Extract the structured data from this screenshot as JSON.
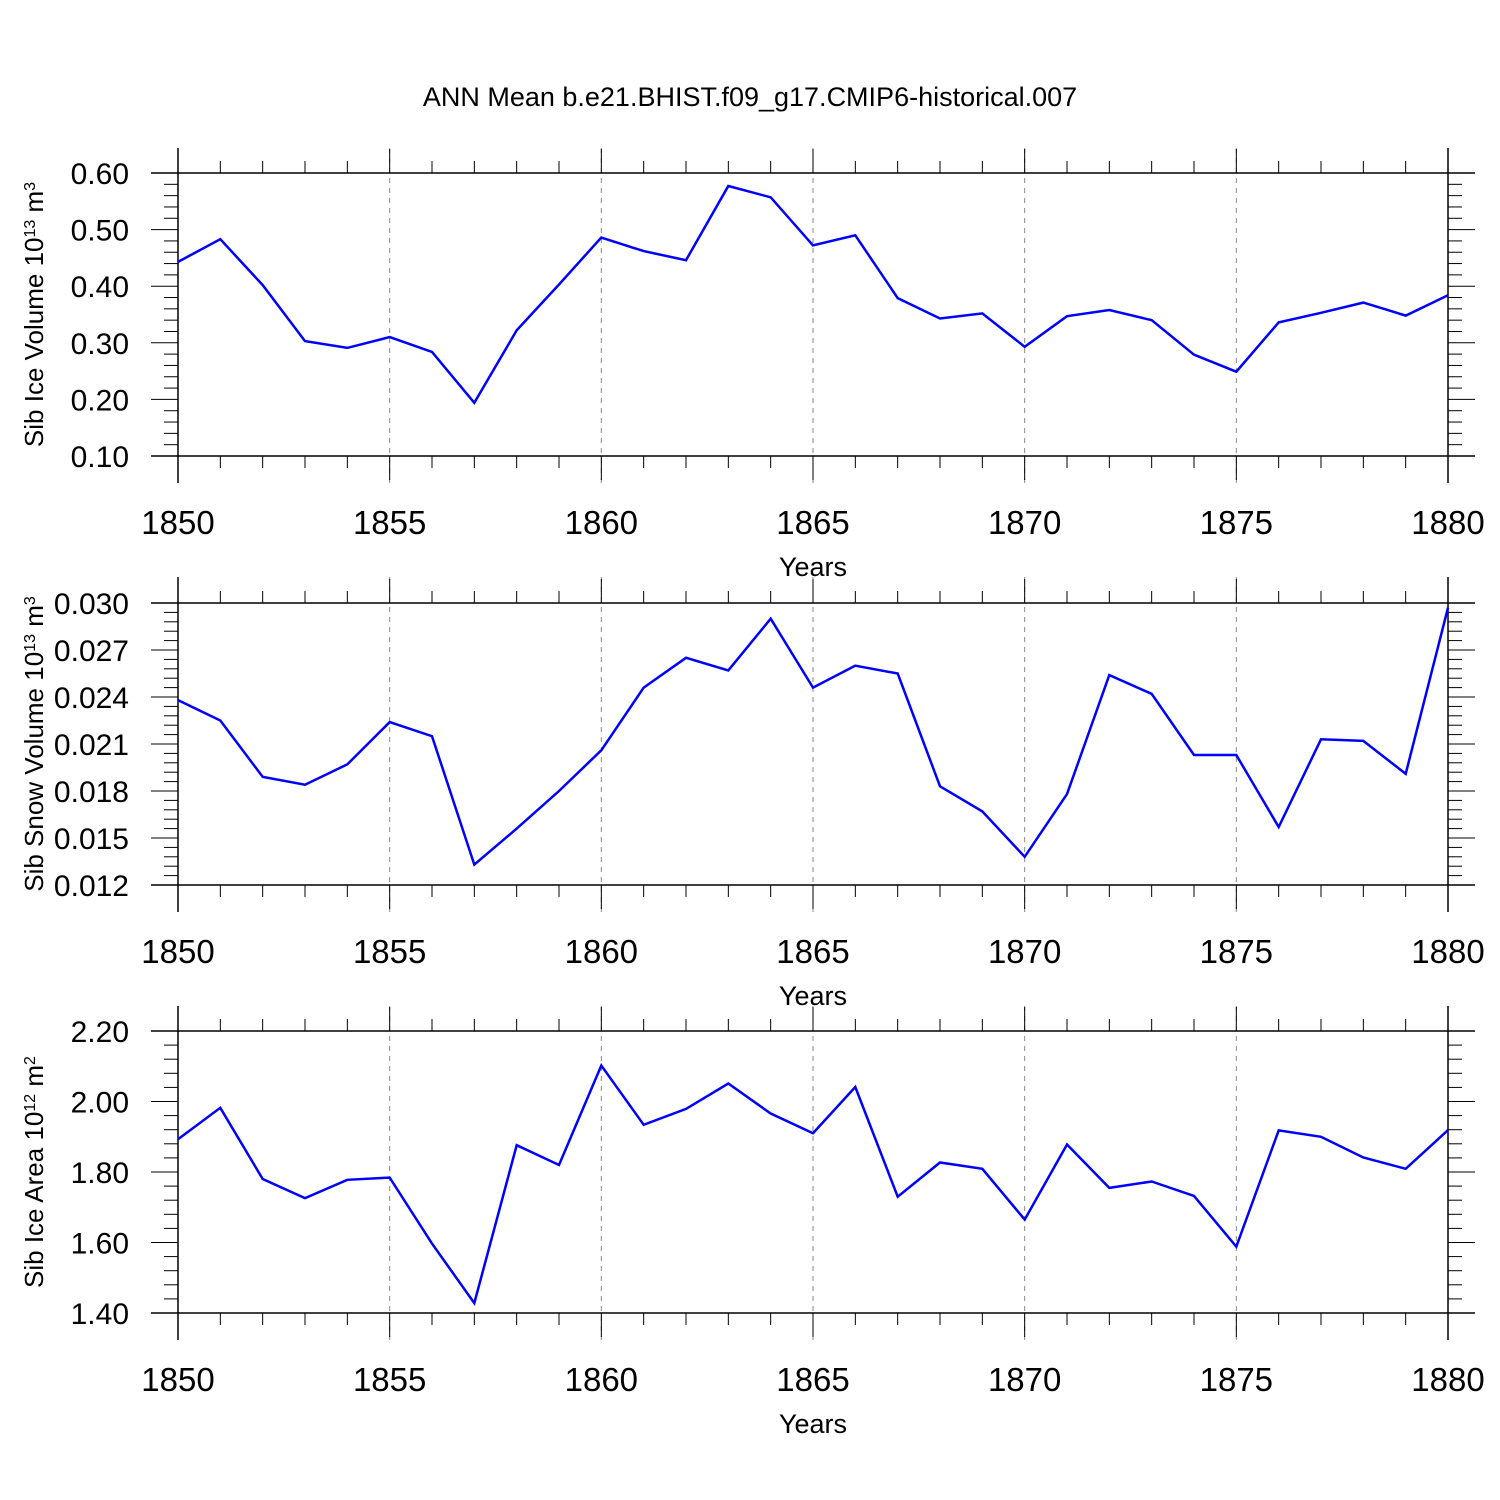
{
  "title": "ANN Mean b.e21.BHIST.f09_g17.CMIP6-historical.007",
  "colors": {
    "line": "#0000ff",
    "axis": "#000000",
    "grid": "#888888"
  },
  "chart_data": [
    {
      "type": "line",
      "ylabel": "Sib Ice Volume 10",
      "ylabel_exp": "13",
      "ylabel_unit": "m",
      "ylabel_unit_exp": "3",
      "xlabel": "Years",
      "xlim": [
        1850,
        1880
      ],
      "ylim": [
        0.1,
        0.6
      ],
      "y_ticks": [
        "0.10",
        "0.20",
        "0.30",
        "0.40",
        "0.50",
        "0.60"
      ],
      "x_ticks": [
        "1850",
        "1855",
        "1860",
        "1865",
        "1870",
        "1875",
        "1880"
      ],
      "grid_x": true,
      "x": [
        1850,
        1851,
        1852,
        1853,
        1854,
        1855,
        1856,
        1857,
        1858,
        1859,
        1860,
        1861,
        1862,
        1863,
        1864,
        1865,
        1866,
        1867,
        1868,
        1869,
        1870,
        1871,
        1872,
        1873,
        1874,
        1875,
        1876,
        1877,
        1878,
        1879,
        1880
      ],
      "y": [
        0.443,
        0.483,
        0.402,
        0.303,
        0.291,
        0.31,
        0.284,
        0.194,
        0.322,
        0.403,
        0.486,
        0.462,
        0.446,
        0.577,
        0.557,
        0.472,
        0.49,
        0.379,
        0.343,
        0.352,
        0.293,
        0.347,
        0.358,
        0.34,
        0.279,
        0.249,
        0.336,
        0.353,
        0.371,
        0.348,
        0.384
      ]
    },
    {
      "type": "line",
      "ylabel": "Sib Snow Volume 10",
      "ylabel_exp": "13",
      "ylabel_unit": "m",
      "ylabel_unit_exp": "3",
      "xlabel": "Years",
      "xlim": [
        1850,
        1880
      ],
      "ylim": [
        0.012,
        0.03
      ],
      "y_ticks": [
        "0.012",
        "0.015",
        "0.018",
        "0.021",
        "0.024",
        "0.027",
        "0.030"
      ],
      "x_ticks": [
        "1850",
        "1855",
        "1860",
        "1865",
        "1870",
        "1875",
        "1880"
      ],
      "grid_x": true,
      "x": [
        1850,
        1851,
        1852,
        1853,
        1854,
        1855,
        1856,
        1857,
        1858,
        1859,
        1860,
        1861,
        1862,
        1863,
        1864,
        1865,
        1866,
        1867,
        1868,
        1869,
        1870,
        1871,
        1872,
        1873,
        1874,
        1875,
        1876,
        1877,
        1878,
        1879,
        1880
      ],
      "y": [
        0.0238,
        0.0225,
        0.0189,
        0.0184,
        0.0197,
        0.0224,
        0.0215,
        0.0133,
        0.0156,
        0.018,
        0.0206,
        0.0246,
        0.0265,
        0.0257,
        0.029,
        0.0246,
        0.026,
        0.0255,
        0.0183,
        0.0167,
        0.0138,
        0.0178,
        0.0254,
        0.0242,
        0.0203,
        0.0203,
        0.0157,
        0.0213,
        0.0212,
        0.0191,
        0.0297
      ]
    },
    {
      "type": "line",
      "ylabel": "Sib Ice Area 10",
      "ylabel_exp": "12",
      "ylabel_unit": "m",
      "ylabel_unit_exp": "2",
      "xlabel": "Years",
      "xlim": [
        1850,
        1880
      ],
      "ylim": [
        1.4,
        2.2
      ],
      "y_ticks": [
        "1.40",
        "1.60",
        "1.80",
        "2.00",
        "2.20"
      ],
      "x_ticks": [
        "1850",
        "1855",
        "1860",
        "1865",
        "1870",
        "1875",
        "1880"
      ],
      "grid_x": true,
      "x": [
        1850,
        1851,
        1852,
        1853,
        1854,
        1855,
        1856,
        1857,
        1858,
        1859,
        1860,
        1861,
        1862,
        1863,
        1864,
        1865,
        1866,
        1867,
        1868,
        1869,
        1870,
        1871,
        1872,
        1873,
        1874,
        1875,
        1876,
        1877,
        1878,
        1879,
        1880
      ],
      "y": [
        1.893,
        1.982,
        1.78,
        1.726,
        1.778,
        1.784,
        1.597,
        1.428,
        1.876,
        1.82,
        2.102,
        1.934,
        1.979,
        2.051,
        1.966,
        1.91,
        2.041,
        1.73,
        1.827,
        1.809,
        1.665,
        1.878,
        1.755,
        1.773,
        1.732,
        1.588,
        1.918,
        1.9,
        1.841,
        1.809,
        1.919
      ]
    }
  ]
}
